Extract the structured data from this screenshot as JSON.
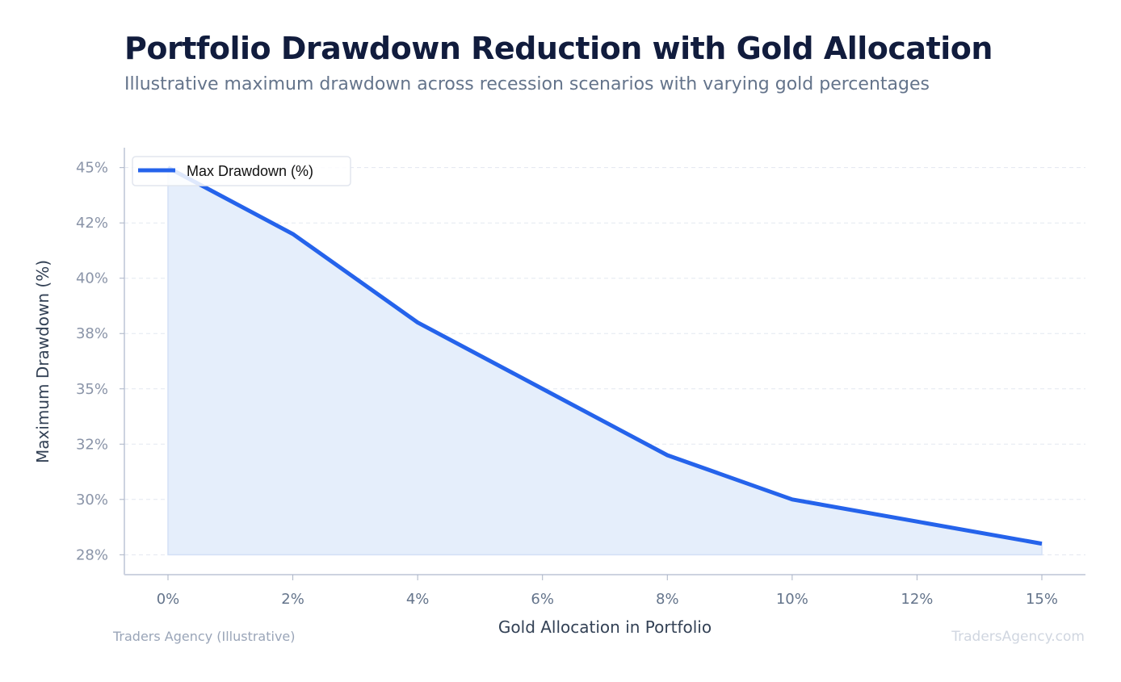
{
  "title": "Portfolio Drawdown Reduction with Gold Allocation",
  "subtitle": "Illustrative maximum drawdown across recession scenarios with varying gold percentages",
  "source": "Traders Agency (Illustrative)",
  "watermark": "TradersAgency.com",
  "chart_data": {
    "type": "area",
    "title": "Portfolio Drawdown Reduction with Gold Allocation",
    "xlabel": "Gold Allocation in Portfolio",
    "ylabel": "Maximum Drawdown (%)",
    "categories": [
      "0%",
      "2%",
      "4%",
      "6%",
      "8%",
      "10%",
      "12%",
      "15%"
    ],
    "series": [
      {
        "name": "Max Drawdown (%)",
        "values": [
          45,
          42,
          38,
          35,
          32,
          30,
          29,
          28
        ],
        "color": "#2563eb",
        "fill": "#e5eefb"
      }
    ],
    "fill_baseline": 27.5,
    "yticks": [
      {
        "value": 45,
        "label": "45%"
      },
      {
        "value": 42.5,
        "label": "42%"
      },
      {
        "value": 40,
        "label": "40%"
      },
      {
        "value": 37.5,
        "label": "38%"
      },
      {
        "value": 35,
        "label": "35%"
      },
      {
        "value": 32.5,
        "label": "32%"
      },
      {
        "value": 30,
        "label": "30%"
      },
      {
        "value": 27.5,
        "label": "28%"
      }
    ],
    "ylim": [
      26.6,
      45.9
    ],
    "grid": "horizontal dashed",
    "legend": "top-left"
  }
}
